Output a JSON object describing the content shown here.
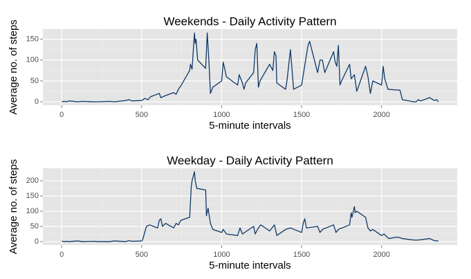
{
  "chart_data": [
    {
      "type": "line",
      "title": "Weekends - Daily Activity Pattern",
      "x_label": "5-minute intervals",
      "y_label": "Average no. of steps",
      "color": "#0d3868",
      "grid": true,
      "x": [
        0,
        15,
        30,
        45,
        100,
        130,
        200,
        230,
        300,
        330,
        400,
        420,
        440,
        500,
        520,
        540,
        555,
        610,
        620,
        650,
        700,
        715,
        730,
        745,
        800,
        805,
        815,
        830,
        835,
        840,
        850,
        900,
        910,
        920,
        930,
        945,
        1000,
        1010,
        1030,
        1100,
        1110,
        1130,
        1140,
        1150,
        1200,
        1210,
        1220,
        1230,
        1240,
        1300,
        1320,
        1330,
        1340,
        1345,
        1400,
        1410,
        1430,
        1450,
        1500,
        1540,
        1550,
        1600,
        1615,
        1630,
        1645,
        1700,
        1710,
        1720,
        1730,
        1740,
        1750,
        1800,
        1810,
        1830,
        1845,
        1900,
        1915,
        1930,
        1945,
        2000,
        2010,
        2020,
        2040,
        2100,
        2115,
        2130,
        2200,
        2215,
        2230,
        2245,
        2300,
        2330,
        2345,
        2355
      ],
      "values": [
        0,
        1,
        0,
        2,
        0,
        1,
        0,
        0,
        1,
        0,
        3,
        5,
        2,
        3,
        8,
        5,
        12,
        20,
        10,
        15,
        22,
        18,
        30,
        38,
        75,
        90,
        78,
        165,
        140,
        150,
        100,
        80,
        165,
        100,
        20,
        35,
        50,
        95,
        60,
        40,
        65,
        45,
        30,
        45,
        70,
        125,
        140,
        35,
        50,
        90,
        75,
        120,
        110,
        45,
        30,
        55,
        125,
        30,
        40,
        135,
        145,
        70,
        100,
        100,
        70,
        120,
        95,
        85,
        135,
        40,
        50,
        90,
        55,
        65,
        25,
        85,
        60,
        20,
        50,
        40,
        85,
        55,
        30,
        28,
        28,
        5,
        0,
        0,
        5,
        2,
        10,
        3,
        5,
        0
      ],
      "xlim": [
        -117.75,
        2472.75
      ],
      "ylim": [
        -8.3,
        174.3
      ],
      "xticks": [
        0,
        500,
        1000,
        1500,
        2000
      ],
      "yticks": [
        0,
        50,
        100,
        150
      ]
    },
    {
      "type": "line",
      "title": "Weekday - Daily Activity Pattern",
      "x_label": "5-minute intervals",
      "y_label": "Average no. of steps",
      "color": "#0d3868",
      "grid": true,
      "x": [
        0,
        15,
        30,
        45,
        100,
        130,
        200,
        230,
        300,
        330,
        400,
        420,
        440,
        500,
        505,
        530,
        550,
        600,
        610,
        620,
        630,
        650,
        700,
        715,
        730,
        745,
        800,
        810,
        815,
        830,
        835,
        845,
        900,
        905,
        915,
        930,
        945,
        1000,
        1010,
        1030,
        1100,
        1115,
        1130,
        1200,
        1210,
        1230,
        1245,
        1300,
        1330,
        1345,
        1400,
        1430,
        1500,
        1510,
        1520,
        1530,
        1600,
        1615,
        1630,
        1700,
        1715,
        1730,
        1800,
        1810,
        1815,
        1830,
        1835,
        1845,
        1900,
        1915,
        1930,
        1945,
        2000,
        2015,
        2045,
        2100,
        2130,
        2200,
        2230,
        2300,
        2330,
        2355
      ],
      "values": [
        2,
        0,
        1,
        0,
        2,
        0,
        1,
        0,
        0,
        2,
        0,
        3,
        1,
        2,
        5,
        50,
        55,
        45,
        70,
        75,
        50,
        60,
        45,
        60,
        55,
        70,
        80,
        180,
        200,
        230,
        200,
        175,
        170,
        85,
        110,
        60,
        40,
        30,
        40,
        25,
        20,
        45,
        25,
        50,
        25,
        45,
        55,
        35,
        55,
        20,
        40,
        45,
        30,
        60,
        75,
        45,
        50,
        30,
        40,
        55,
        30,
        40,
        55,
        95,
        80,
        115,
        95,
        100,
        80,
        45,
        35,
        40,
        20,
        25,
        10,
        15,
        10,
        5,
        5,
        10,
        3,
        2
      ],
      "xlim": [
        -117.75,
        2472.75
      ],
      "ylim": [
        -11.5,
        241.5
      ],
      "xticks": [
        0,
        500,
        1000,
        1500,
        2000
      ],
      "yticks": [
        0,
        50,
        100,
        150,
        200
      ]
    }
  ]
}
